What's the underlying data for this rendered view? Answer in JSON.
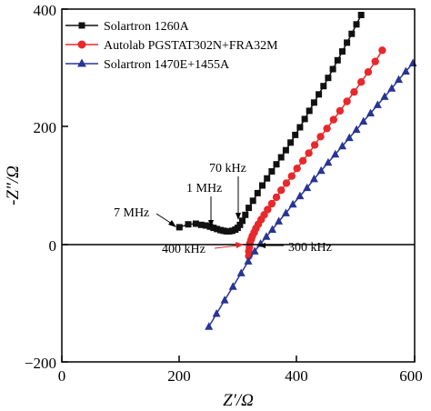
{
  "chart_data": {
    "type": "line",
    "xlabel": "Z′/Ω",
    "ylabel": "-Z″/Ω",
    "xlim": [
      0,
      600
    ],
    "ylim": [
      -200,
      400
    ],
    "xticks": [
      "0",
      "200",
      "400",
      "600"
    ],
    "yticks": [
      "−200",
      "0",
      "200",
      "400"
    ],
    "grid": false,
    "legend_position": "top-left",
    "series": [
      {
        "name": "Solartron 1260A",
        "color": "#111111",
        "marker": "square",
        "x": [
          200,
          215,
          228,
          237,
          245,
          252,
          258,
          264,
          270,
          275,
          280,
          285,
          290,
          295,
          299,
          303,
          307,
          312,
          318,
          325,
          333,
          341,
          349,
          357,
          365,
          373,
          381,
          389,
          397,
          405,
          413,
          421,
          429,
          437,
          445,
          453,
          461,
          469,
          477,
          485,
          493,
          501,
          509
        ],
        "y": [
          29,
          34,
          35,
          33,
          32,
          30,
          28,
          26,
          24,
          23,
          22,
          22,
          23,
          25,
          28,
          33,
          40,
          50,
          62,
          74,
          87,
          100,
          112,
          124,
          136,
          148,
          160,
          173,
          186,
          199,
          213,
          227,
          241,
          255,
          269,
          283,
          298,
          313,
          328,
          343,
          358,
          374,
          390
        ]
      },
      {
        "name": "Autolab PGSTAT302N+FRA32M",
        "color": "#e8282b",
        "marker": "circle",
        "x": [
          318,
          318,
          319,
          320,
          322,
          324,
          327,
          330,
          334,
          339,
          344,
          350,
          357,
          365,
          373,
          382,
          391,
          400,
          410,
          420,
          430,
          440,
          451,
          462,
          473,
          485,
          497,
          509,
          521,
          533,
          545
        ],
        "y": [
          -20,
          -12,
          -5,
          2,
          8,
          14,
          20,
          27,
          34,
          42,
          50,
          59,
          69,
          80,
          92,
          104,
          116,
          129,
          142,
          155,
          169,
          183,
          197,
          212,
          227,
          243,
          259,
          276,
          293,
          311,
          330
        ]
      },
      {
        "name": "Solartron 1470E+1455A",
        "color": "#283593",
        "marker": "triangle",
        "x": [
          250,
          263,
          277,
          291,
          305,
          317,
          328,
          338,
          348,
          358,
          369,
          381,
          393,
          405,
          417,
          429,
          441,
          453,
          465,
          477,
          489,
          501,
          513,
          525,
          537,
          549,
          561,
          573,
          585,
          597
        ],
        "y": [
          -140,
          -118,
          -95,
          -72,
          -49,
          -29,
          -12,
          1,
          13,
          25,
          39,
          53,
          68,
          82,
          96,
          111,
          125,
          139,
          153,
          167,
          181,
          195,
          209,
          223,
          237,
          251,
          265,
          280,
          294,
          308
        ]
      }
    ],
    "annotations": [
      {
        "text": "7 MHz",
        "target": [
          197,
          29
        ]
      },
      {
        "text": "1 MHz",
        "target": [
          253,
          29
        ]
      },
      {
        "text": "70 kHz",
        "target": [
          293,
          28
        ]
      },
      {
        "text": "400 kHz",
        "target": [
          320,
          2
        ]
      },
      {
        "text": "300 kHz",
        "target": [
          332,
          0
        ]
      }
    ]
  }
}
